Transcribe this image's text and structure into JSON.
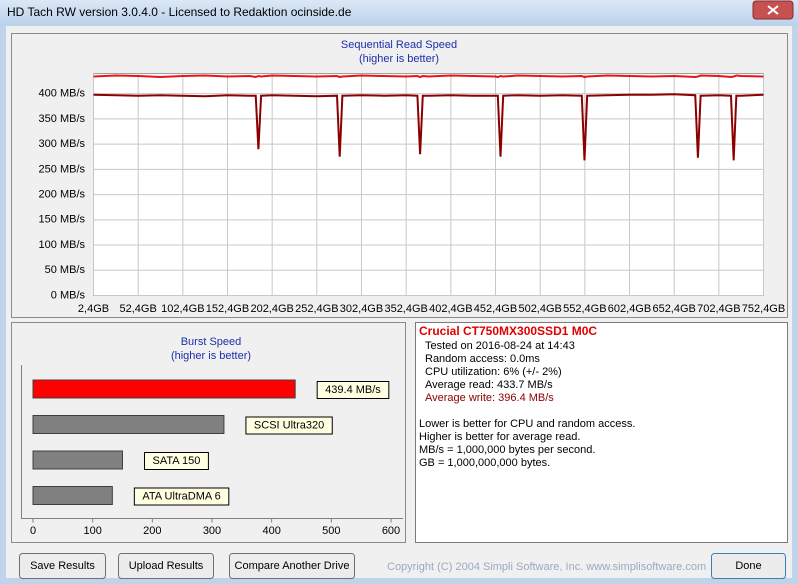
{
  "window": {
    "title": "HD Tach RW version 3.0.4.0 - Licensed to Redaktion ocinside.de"
  },
  "chart_data": [
    {
      "type": "line",
      "title": "Sequential Read Speed",
      "subtitle": "(higher is better)",
      "x": [
        2.4,
        27.4,
        52.4,
        77.4,
        102.4,
        127.4,
        152.4,
        177.4,
        184,
        187,
        190,
        202.4,
        227.4,
        252.4,
        275,
        278,
        281,
        302.4,
        327.4,
        352.4,
        365,
        368,
        371,
        377.4,
        402.4,
        427.4,
        452.4,
        455,
        458,
        461,
        477.4,
        502.4,
        527.4,
        549,
        552,
        555,
        577.4,
        602.4,
        627.4,
        652.4,
        676,
        679,
        682,
        702.4,
        716,
        719,
        722,
        727.4,
        752.4
      ],
      "series": [
        {
          "color": "#e8161b",
          "values": [
            434,
            436,
            435,
            433,
            435,
            436,
            434,
            435,
            433,
            435,
            434,
            436,
            435,
            434,
            435,
            433,
            434,
            436,
            435,
            434,
            435,
            433,
            435,
            434,
            436,
            435,
            434,
            433,
            435,
            434,
            436,
            435,
            434,
            435,
            433,
            434,
            436,
            435,
            434,
            435,
            433,
            434,
            436,
            435,
            433,
            434,
            436,
            435,
            434
          ]
        },
        {
          "color": "#8b0000",
          "values": [
            398,
            397,
            396,
            397,
            396,
            395,
            397,
            396,
            396,
            290,
            396,
            397,
            396,
            395,
            396,
            275,
            396,
            397,
            396,
            397,
            396,
            280,
            396,
            396,
            397,
            396,
            396,
            396,
            275,
            396,
            397,
            396,
            397,
            396,
            268,
            396,
            397,
            398,
            398,
            399,
            397,
            273,
            396,
            397,
            396,
            268,
            396,
            396,
            398
          ]
        }
      ],
      "xlim": [
        2.4,
        752.4
      ],
      "xticks": [
        {
          "value": 2.4,
          "label": "2,4GB"
        },
        {
          "value": 52.4,
          "label": "52,4GB"
        },
        {
          "value": 102.4,
          "label": "102,4GB"
        },
        {
          "value": 152.4,
          "label": "152,4GB"
        },
        {
          "value": 202.4,
          "label": "202,4GB"
        },
        {
          "value": 252.4,
          "label": "252,4GB"
        },
        {
          "value": 302.4,
          "label": "302,4GB"
        },
        {
          "value": 352.4,
          "label": "352,4GB"
        },
        {
          "value": 402.4,
          "label": "402,4GB"
        },
        {
          "value": 452.4,
          "label": "452,4GB"
        },
        {
          "value": 502.4,
          "label": "502,4GB"
        },
        {
          "value": 552.4,
          "label": "552,4GB"
        },
        {
          "value": 602.4,
          "label": "602,4GB"
        },
        {
          "value": 652.4,
          "label": "652,4GB"
        },
        {
          "value": 702.4,
          "label": "702,4GB"
        },
        {
          "value": 752.4,
          "label": "752,4GB"
        }
      ],
      "ylim": [
        0,
        440
      ],
      "yticks": [
        {
          "value": 0,
          "label": "0 MB/s"
        },
        {
          "value": 50,
          "label": "50 MB/s"
        },
        {
          "value": 100,
          "label": "100 MB/s"
        },
        {
          "value": 150,
          "label": "150 MB/s"
        },
        {
          "value": 200,
          "label": "200 MB/s"
        },
        {
          "value": 250,
          "label": "250 MB/s"
        },
        {
          "value": 300,
          "label": "300 MB/s"
        },
        {
          "value": 350,
          "label": "350 MB/s"
        },
        {
          "value": 400,
          "label": "400 MB/s"
        }
      ],
      "grid": true
    },
    {
      "type": "bar",
      "orientation": "horizontal",
      "title": "Burst Speed",
      "subtitle": "(higher is better)",
      "categories": [
        null,
        "SCSI Ultra320",
        "SATA 150",
        "ATA UltraDMA 6"
      ],
      "values": [
        439.4,
        320,
        150,
        133
      ],
      "value_labels": [
        "439.4 MB/s",
        null,
        null,
        null
      ],
      "colors": [
        "#ff0000",
        "#808080",
        "#808080",
        "#808080"
      ],
      "xlim": [
        0,
        600
      ],
      "xticks": [
        0,
        100,
        200,
        300,
        400,
        500,
        600
      ],
      "grid": false
    }
  ],
  "info": {
    "drive": "Crucial  CT750MX300SSD1 M0C",
    "lines": [
      "Tested on 2016-08-24 at 14:43",
      "Random access: 0.0ms",
      "CPU utilization: 6% (+/- 2%)",
      "Average read: 433.7 MB/s",
      "Average write: 396.4 MB/s"
    ],
    "notes": [
      "Lower is better for CPU and random access.",
      "Higher is better for average read.",
      "MB/s = 1,000,000 bytes per second.",
      "GB = 1,000,000,000 bytes."
    ]
  },
  "buttons": [
    "Save Results",
    "Upload Results",
    "Compare Another Drive",
    "Done"
  ],
  "copyright": "Copyright (C) 2004 Simpli Software, Inc. www.simplisoftware.com"
}
